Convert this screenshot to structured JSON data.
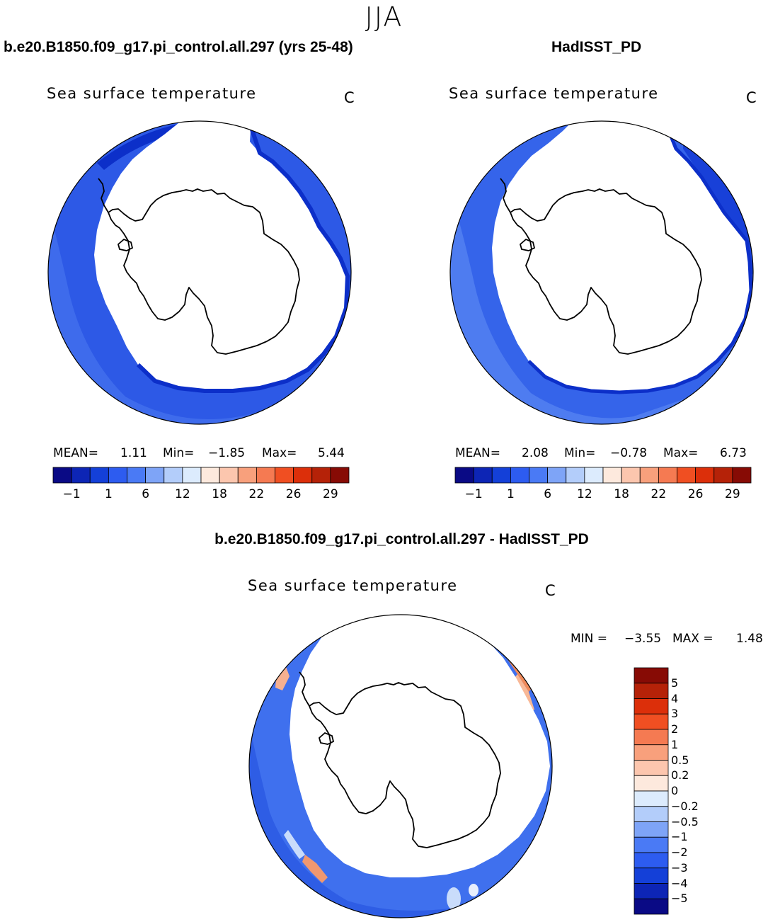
{
  "season": "JJA",
  "colors": {
    "ocean_dark": "#0c2fc9",
    "ocean_mid": "#2d59e6",
    "ocean_light": "#4a78f0",
    "land": "#ffffff",
    "coast": "#000000",
    "diff_pos": "#f08a5a",
    "diff_neg": "#3a6df0"
  },
  "panels": [
    {
      "title": "b.e20.B1850.f09_g17.pi_control.all.297 (yrs 25-48)",
      "variable": "Sea surface temperature",
      "unit": "C",
      "stats": {
        "mean_label": "MEAN=",
        "mean": "1.11",
        "min_label": "Min=",
        "min": "−1.85",
        "max_label": "Max=",
        "max": "5.44"
      }
    },
    {
      "title": "HadISST_PD",
      "variable": "Sea surface temperature",
      "unit": "C",
      "stats": {
        "mean_label": "MEAN=",
        "mean": "2.08",
        "min_label": "Min=",
        "min": "−0.78",
        "max_label": "Max=",
        "max": "6.73"
      }
    },
    {
      "title": "b.e20.B1850.f09_g17.pi_control.all.297 - HadISST_PD",
      "variable": "Sea surface temperature",
      "unit": "C",
      "stats": {
        "min_label": "MIN =",
        "min": "−3.55",
        "max_label": "MAX =",
        "max": "1.48"
      }
    }
  ],
  "sst_colorbar": {
    "colors": [
      "#0a0a85",
      "#0d25b5",
      "#1440d8",
      "#2d5cf0",
      "#4a7af5",
      "#7ea4f7",
      "#b3cdfa",
      "#dcebfd",
      "#fde9dd",
      "#fcc6ae",
      "#f8a07c",
      "#f57a52",
      "#f04f22",
      "#dc2f0a",
      "#b52208",
      "#870b05"
    ],
    "tick_labels": [
      "−1",
      "1",
      "6",
      "12",
      "18",
      "22",
      "26",
      "29"
    ]
  },
  "diff_colorbar": {
    "colors": [
      "#0a0a85",
      "#0d25b5",
      "#1440d8",
      "#2d5cf0",
      "#4a7af5",
      "#7ea4f7",
      "#b3cdfa",
      "#dcebfd",
      "#fde9dd",
      "#fcc6ae",
      "#f8a07c",
      "#f57a52",
      "#f04f22",
      "#dc2f0a",
      "#b52208",
      "#870b05"
    ],
    "tick_labels": [
      "5",
      "4",
      "3",
      "2",
      "1",
      "0.5",
      "0.2",
      "0",
      "−0.2",
      "−0.5",
      "−1",
      "−2",
      "−3",
      "−4",
      "−5"
    ]
  }
}
